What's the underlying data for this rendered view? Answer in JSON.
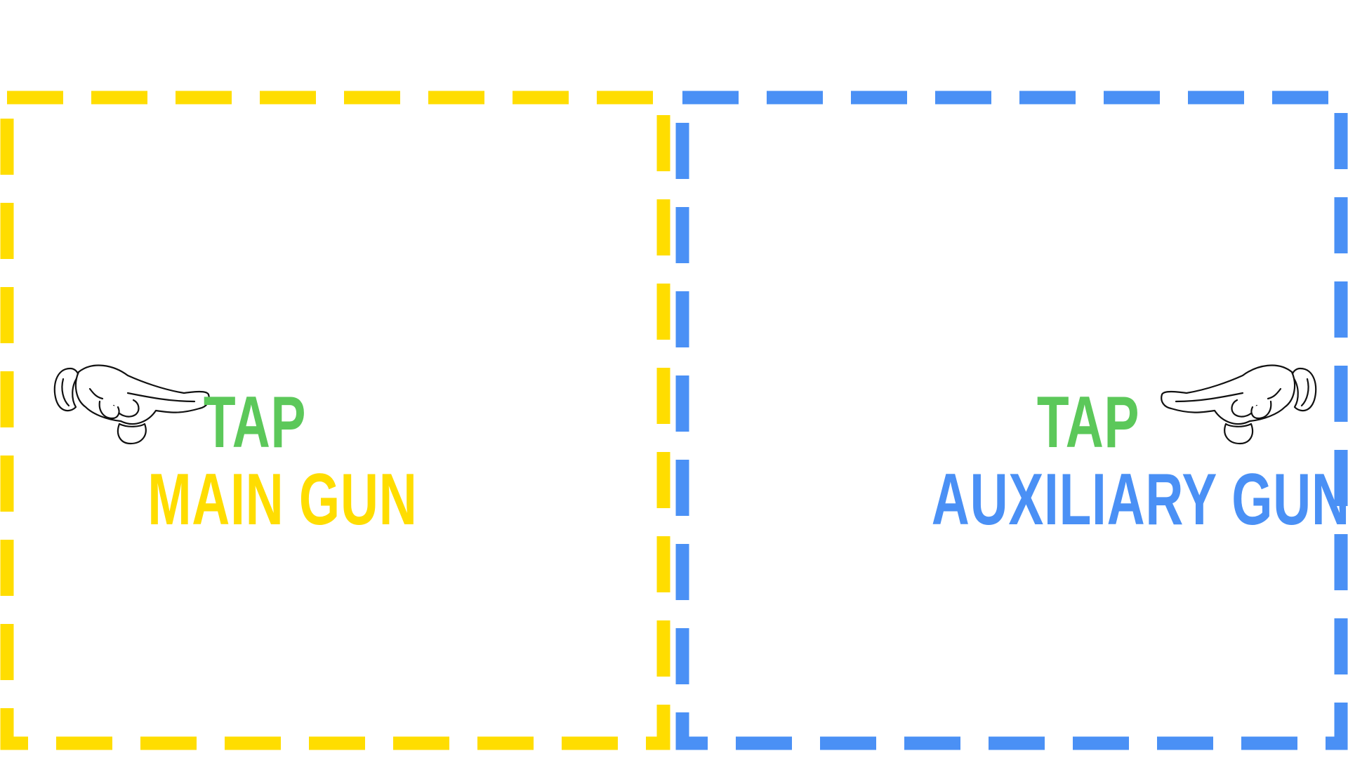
{
  "zones": {
    "main": {
      "tap_label": "TAP",
      "action_label": "MAIN GUN",
      "border_color": "#FFDD00",
      "icon": "pointing-hand-icon"
    },
    "auxiliary": {
      "tap_label": "TAP",
      "action_label": "AUXILIARY GUN",
      "border_color": "#4A90F5",
      "icon": "pointing-hand-icon"
    }
  },
  "colors": {
    "tap": "#5CC85A",
    "main_gun": "#FFDD00",
    "auxiliary_gun": "#4A90F5",
    "background": "#FFFFFF"
  }
}
